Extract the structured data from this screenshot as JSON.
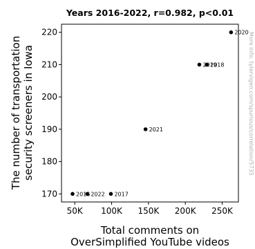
{
  "chart_data": {
    "type": "scatter",
    "title": "Years 2016-2022, r=0.982, p<0.01",
    "xlabel": [
      "Total comments on",
      "OverSimplified YouTube videos"
    ],
    "ylabel": [
      "The number of transportation",
      "security screeners in Iowa"
    ],
    "xlim": [
      32000,
      272000
    ],
    "ylim": [
      167.5,
      222.5
    ],
    "x_ticks": [
      50000,
      100000,
      150000,
      200000,
      250000
    ],
    "x_tick_labels": [
      "50K",
      "100K",
      "150K",
      "200K",
      "250K"
    ],
    "y_ticks": [
      170,
      180,
      190,
      200,
      210,
      220
    ],
    "y_tick_labels": [
      "170",
      "180",
      "190",
      "200",
      "210",
      "220"
    ],
    "grid": false,
    "points": [
      {
        "label": "2016",
        "x": 47000,
        "y": 170
      },
      {
        "label": "2022",
        "x": 67000,
        "y": 170
      },
      {
        "label": "2017",
        "x": 99000,
        "y": 170
      },
      {
        "label": "2021",
        "x": 146000,
        "y": 190
      },
      {
        "label": "2019",
        "x": 219000,
        "y": 210
      },
      {
        "label": "2018",
        "x": 229000,
        "y": 210
      },
      {
        "label": "2020",
        "x": 262000,
        "y": 220
      }
    ]
  },
  "watermark": "More info: tylervigen.com/spurious/correlation/5735"
}
